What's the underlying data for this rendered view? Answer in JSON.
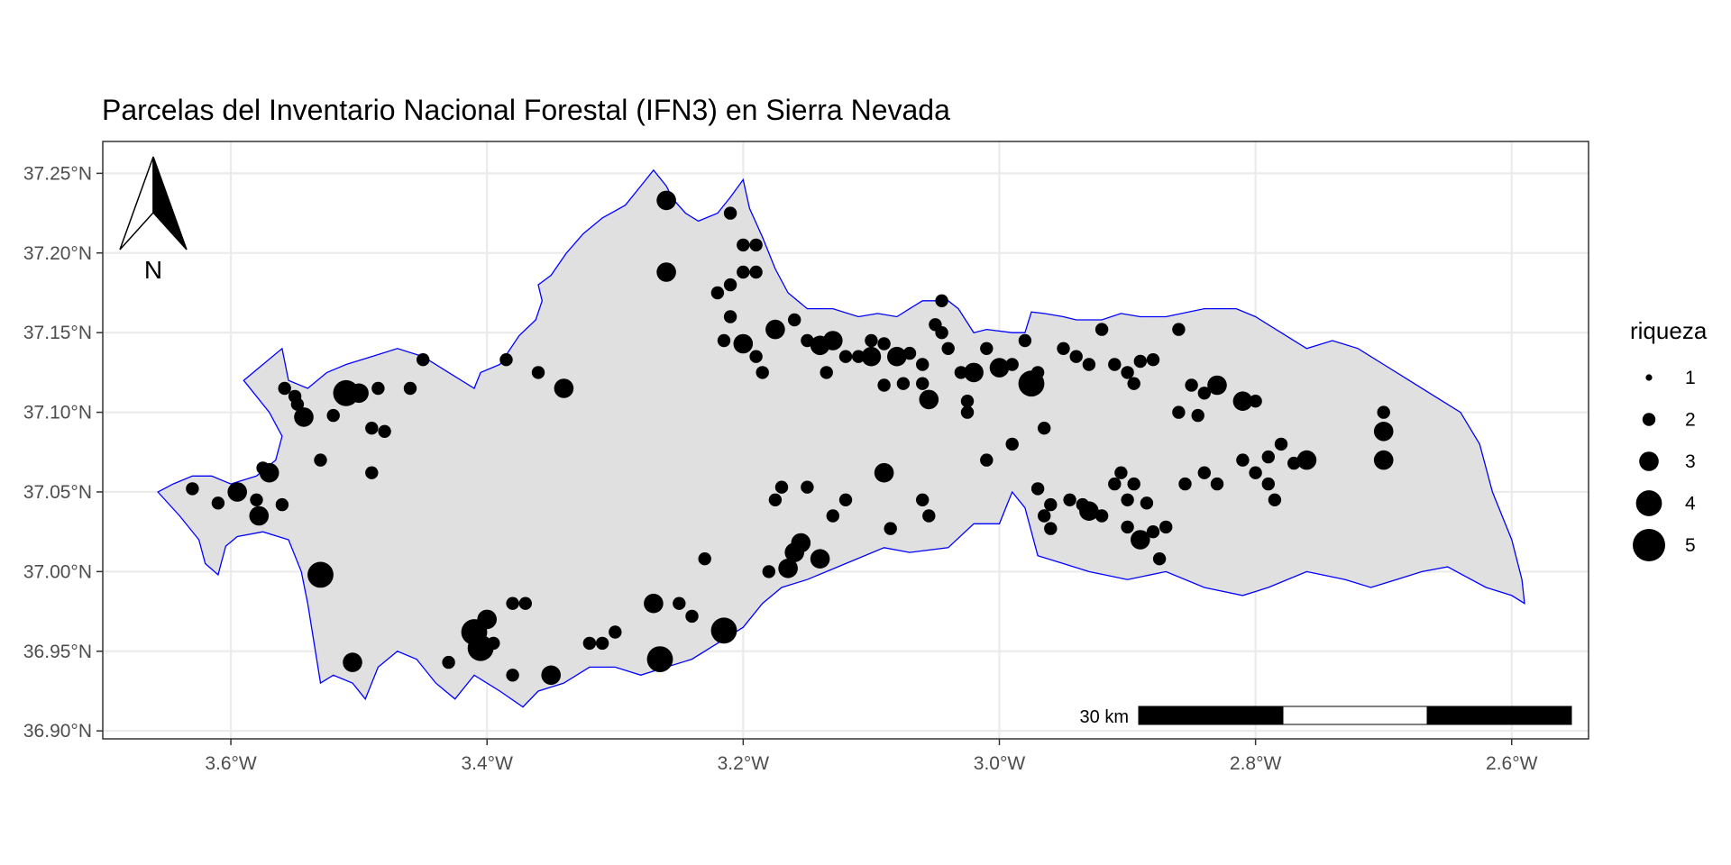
{
  "title": "Parcelas del Inventario Nacional Forestal (IFN3) en Sierra Nevada",
  "colors": {
    "panel_border": "#333333",
    "grid": "#ebebeb",
    "region_fill": "#e0e0e0",
    "region_stroke": "#0000ff",
    "points": "#000000",
    "tick_text": "#4d4d4d"
  },
  "x_ticks": [
    {
      "value": -3.6,
      "label": "3.6°W"
    },
    {
      "value": -3.4,
      "label": "3.4°W"
    },
    {
      "value": -3.2,
      "label": "3.2°W"
    },
    {
      "value": -3.0,
      "label": "3.0°W"
    },
    {
      "value": -2.8,
      "label": "2.8°W"
    },
    {
      "value": -2.6,
      "label": "2.6°W"
    }
  ],
  "y_ticks": [
    {
      "value": 37.25,
      "label": "37.25°N"
    },
    {
      "value": 37.2,
      "label": "37.20°N"
    },
    {
      "value": 37.15,
      "label": "37.15°N"
    },
    {
      "value": 37.1,
      "label": "37.10°N"
    },
    {
      "value": 37.05,
      "label": "37.05°N"
    },
    {
      "value": 37.0,
      "label": "37.00°N"
    },
    {
      "value": 36.95,
      "label": "36.95°N"
    },
    {
      "value": 36.9,
      "label": "36.90°N"
    }
  ],
  "xlim": [
    -3.7,
    -2.54
  ],
  "ylim": [
    36.895,
    37.27
  ],
  "legend": {
    "title": "riqueza",
    "entries": [
      {
        "label": "1",
        "value": 1
      },
      {
        "label": "2",
        "value": 2
      },
      {
        "label": "3",
        "value": 3
      },
      {
        "label": "4",
        "value": 4
      },
      {
        "label": "5",
        "value": 5
      }
    ]
  },
  "north_arrow": {
    "label": "N"
  },
  "scale_bar": {
    "label": "30 km",
    "segments": 3
  },
  "region_outline": [
    [
      -3.657,
      37.05
    ],
    [
      -3.64,
      37.035
    ],
    [
      -3.625,
      37.02
    ],
    [
      -3.62,
      37.005
    ],
    [
      -3.61,
      36.998
    ],
    [
      -3.604,
      37.016
    ],
    [
      -3.595,
      37.022
    ],
    [
      -3.575,
      37.025
    ],
    [
      -3.555,
      37.02
    ],
    [
      -3.545,
      37.0
    ],
    [
      -3.54,
      36.98
    ],
    [
      -3.535,
      36.955
    ],
    [
      -3.53,
      36.93
    ],
    [
      -3.52,
      36.935
    ],
    [
      -3.505,
      36.93
    ],
    [
      -3.495,
      36.92
    ],
    [
      -3.485,
      36.94
    ],
    [
      -3.47,
      36.95
    ],
    [
      -3.455,
      36.945
    ],
    [
      -3.44,
      36.93
    ],
    [
      -3.425,
      36.92
    ],
    [
      -3.41,
      36.935
    ],
    [
      -3.39,
      36.925
    ],
    [
      -3.372,
      36.915
    ],
    [
      -3.36,
      36.925
    ],
    [
      -3.34,
      36.93
    ],
    [
      -3.32,
      36.94
    ],
    [
      -3.3,
      36.94
    ],
    [
      -3.28,
      36.935
    ],
    [
      -3.26,
      36.94
    ],
    [
      -3.24,
      36.945
    ],
    [
      -3.22,
      36.955
    ],
    [
      -3.2,
      36.965
    ],
    [
      -3.185,
      36.98
    ],
    [
      -3.17,
      36.99
    ],
    [
      -3.15,
      36.995
    ],
    [
      -3.12,
      37.005
    ],
    [
      -3.09,
      37.015
    ],
    [
      -3.07,
      37.012
    ],
    [
      -3.04,
      37.015
    ],
    [
      -3.02,
      37.03
    ],
    [
      -3.0,
      37.03
    ],
    [
      -2.99,
      37.05
    ],
    [
      -2.98,
      37.04
    ],
    [
      -2.97,
      37.01
    ],
    [
      -2.95,
      37.005
    ],
    [
      -2.93,
      37.0
    ],
    [
      -2.9,
      36.995
    ],
    [
      -2.87,
      37.0
    ],
    [
      -2.84,
      36.99
    ],
    [
      -2.81,
      36.985
    ],
    [
      -2.79,
      36.99
    ],
    [
      -2.76,
      37.0
    ],
    [
      -2.73,
      36.995
    ],
    [
      -2.71,
      36.99
    ],
    [
      -2.69,
      36.995
    ],
    [
      -2.67,
      37.0
    ],
    [
      -2.65,
      37.003
    ],
    [
      -2.62,
      36.99
    ],
    [
      -2.6,
      36.985
    ],
    [
      -2.59,
      36.98
    ],
    [
      -2.592,
      36.995
    ],
    [
      -2.6,
      37.02
    ],
    [
      -2.615,
      37.05
    ],
    [
      -2.625,
      37.08
    ],
    [
      -2.64,
      37.1
    ],
    [
      -2.66,
      37.11
    ],
    [
      -2.68,
      37.12
    ],
    [
      -2.7,
      37.13
    ],
    [
      -2.72,
      37.14
    ],
    [
      -2.74,
      37.145
    ],
    [
      -2.76,
      37.14
    ],
    [
      -2.78,
      37.15
    ],
    [
      -2.8,
      37.16
    ],
    [
      -2.815,
      37.165
    ],
    [
      -2.84,
      37.165
    ],
    [
      -2.87,
      37.16
    ],
    [
      -2.89,
      37.16
    ],
    [
      -2.905,
      37.162
    ],
    [
      -2.92,
      37.158
    ],
    [
      -2.94,
      37.158
    ],
    [
      -2.95,
      37.16
    ],
    [
      -2.965,
      37.162
    ],
    [
      -2.975,
      37.163
    ],
    [
      -2.98,
      37.15
    ],
    [
      -2.99,
      37.15
    ],
    [
      -3.01,
      37.152
    ],
    [
      -3.02,
      37.15
    ],
    [
      -3.032,
      37.165
    ],
    [
      -3.04,
      37.17
    ],
    [
      -3.06,
      37.17
    ],
    [
      -3.07,
      37.165
    ],
    [
      -3.08,
      37.16
    ],
    [
      -3.095,
      37.162
    ],
    [
      -3.11,
      37.16
    ],
    [
      -3.13,
      37.165
    ],
    [
      -3.15,
      37.165
    ],
    [
      -3.165,
      37.175
    ],
    [
      -3.175,
      37.19
    ],
    [
      -3.185,
      37.21
    ],
    [
      -3.195,
      37.228
    ],
    [
      -3.2,
      37.246
    ],
    [
      -3.21,
      37.235
    ],
    [
      -3.22,
      37.225
    ],
    [
      -3.235,
      37.22
    ],
    [
      -3.245,
      37.225
    ],
    [
      -3.255,
      37.234
    ],
    [
      -3.26,
      37.242
    ],
    [
      -3.27,
      37.252
    ],
    [
      -3.28,
      37.242
    ],
    [
      -3.292,
      37.23
    ],
    [
      -3.31,
      37.222
    ],
    [
      -3.325,
      37.212
    ],
    [
      -3.338,
      37.2
    ],
    [
      -3.35,
      37.186
    ],
    [
      -3.36,
      37.18
    ],
    [
      -3.357,
      37.17
    ],
    [
      -3.362,
      37.158
    ],
    [
      -3.375,
      37.148
    ],
    [
      -3.39,
      37.13
    ],
    [
      -3.405,
      37.125
    ],
    [
      -3.41,
      37.115
    ],
    [
      -3.43,
      37.125
    ],
    [
      -3.45,
      37.135
    ],
    [
      -3.47,
      37.14
    ],
    [
      -3.49,
      37.135
    ],
    [
      -3.51,
      37.13
    ],
    [
      -3.525,
      37.125
    ],
    [
      -3.54,
      37.115
    ],
    [
      -3.555,
      37.12
    ],
    [
      -3.56,
      37.14
    ],
    [
      -3.575,
      37.13
    ],
    [
      -3.59,
      37.12
    ],
    [
      -3.57,
      37.1
    ],
    [
      -3.56,
      37.085
    ],
    [
      -3.565,
      37.07
    ],
    [
      -3.58,
      37.06
    ],
    [
      -3.6,
      37.055
    ],
    [
      -3.615,
      37.06
    ],
    [
      -3.63,
      37.06
    ],
    [
      -3.645,
      37.055
    ]
  ],
  "points": [
    [
      -3.63,
      37.052,
      2
    ],
    [
      -3.61,
      37.043,
      2
    ],
    [
      -3.595,
      37.05,
      3
    ],
    [
      -3.578,
      37.035,
      3
    ],
    [
      -3.58,
      37.045,
      2
    ],
    [
      -3.57,
      37.062,
      3
    ],
    [
      -3.56,
      37.042,
      2
    ],
    [
      -3.558,
      37.115,
      2
    ],
    [
      -3.548,
      37.105,
      2
    ],
    [
      -3.543,
      37.097,
      3
    ],
    [
      -3.55,
      37.11,
      2
    ],
    [
      -3.575,
      37.065,
      2
    ],
    [
      -3.53,
      37.07,
      2
    ],
    [
      -3.52,
      37.098,
      2
    ],
    [
      -3.51,
      37.112,
      4
    ],
    [
      -3.5,
      37.112,
      3
    ],
    [
      -3.49,
      37.09,
      2
    ],
    [
      -3.48,
      37.088,
      2
    ],
    [
      -3.485,
      37.115,
      2
    ],
    [
      -3.46,
      37.115,
      2
    ],
    [
      -3.45,
      37.133,
      2
    ],
    [
      -3.53,
      36.998,
      4
    ],
    [
      -3.505,
      36.943,
      3
    ],
    [
      -3.49,
      37.062,
      2
    ],
    [
      -3.385,
      37.133,
      2
    ],
    [
      -3.36,
      37.125,
      2
    ],
    [
      -3.34,
      37.115,
      3
    ],
    [
      -3.41,
      36.962,
      4
    ],
    [
      -3.4,
      36.97,
      3
    ],
    [
      -3.405,
      36.952,
      4
    ],
    [
      -3.395,
      36.955,
      2
    ],
    [
      -3.38,
      36.935,
      2
    ],
    [
      -3.43,
      36.943,
      2
    ],
    [
      -3.38,
      36.98,
      2
    ],
    [
      -3.37,
      36.98,
      2
    ],
    [
      -3.35,
      36.935,
      3
    ],
    [
      -3.32,
      36.955,
      2
    ],
    [
      -3.31,
      36.955,
      2
    ],
    [
      -3.3,
      36.962,
      2
    ],
    [
      -3.27,
      36.98,
      3
    ],
    [
      -3.265,
      36.945,
      4
    ],
    [
      -3.25,
      36.98,
      2
    ],
    [
      -3.24,
      36.972,
      2
    ],
    [
      -3.215,
      36.963,
      4
    ],
    [
      -3.23,
      37.008,
      2
    ],
    [
      -3.26,
      37.233,
      3
    ],
    [
      -3.26,
      37.188,
      3
    ],
    [
      -3.21,
      37.225,
      2
    ],
    [
      -3.2,
      37.205,
      2
    ],
    [
      -3.19,
      37.205,
      2
    ],
    [
      -3.2,
      37.188,
      2
    ],
    [
      -3.19,
      37.188,
      2
    ],
    [
      -3.21,
      37.18,
      2
    ],
    [
      -3.21,
      37.16,
      2
    ],
    [
      -3.22,
      37.175,
      2
    ],
    [
      -3.2,
      37.143,
      3
    ],
    [
      -3.215,
      37.145,
      2
    ],
    [
      -3.19,
      37.135,
      2
    ],
    [
      -3.185,
      37.125,
      2
    ],
    [
      -3.175,
      37.152,
      3
    ],
    [
      -3.16,
      37.158,
      2
    ],
    [
      -3.15,
      37.145,
      2
    ],
    [
      -3.14,
      37.142,
      3
    ],
    [
      -3.13,
      37.145,
      3
    ],
    [
      -3.135,
      37.125,
      2
    ],
    [
      -3.12,
      37.135,
      2
    ],
    [
      -3.11,
      37.135,
      2
    ],
    [
      -3.1,
      37.145,
      2
    ],
    [
      -3.1,
      37.135,
      3
    ],
    [
      -3.09,
      37.143,
      2
    ],
    [
      -3.08,
      37.135,
      3
    ],
    [
      -3.07,
      37.137,
      2
    ],
    [
      -3.06,
      37.13,
      2
    ],
    [
      -3.045,
      37.15,
      2
    ],
    [
      -3.045,
      37.17,
      2
    ],
    [
      -3.05,
      37.155,
      2
    ],
    [
      -3.04,
      37.14,
      2
    ],
    [
      -3.075,
      37.118,
      2
    ],
    [
      -3.09,
      37.117,
      2
    ],
    [
      -3.06,
      37.118,
      2
    ],
    [
      -3.055,
      37.108,
      3
    ],
    [
      -3.03,
      37.125,
      2
    ],
    [
      -3.025,
      37.107,
      2
    ],
    [
      -3.025,
      37.1,
      2
    ],
    [
      -3.02,
      37.125,
      3
    ],
    [
      -3.01,
      37.14,
      2
    ],
    [
      -3.0,
      37.128,
      3
    ],
    [
      -2.99,
      37.13,
      2
    ],
    [
      -2.98,
      37.145,
      2
    ],
    [
      -2.97,
      37.125,
      2
    ],
    [
      -2.975,
      37.118,
      4
    ],
    [
      -2.95,
      37.14,
      2
    ],
    [
      -2.94,
      37.135,
      2
    ],
    [
      -2.93,
      37.13,
      2
    ],
    [
      -2.92,
      37.152,
      2
    ],
    [
      -2.91,
      37.13,
      2
    ],
    [
      -2.9,
      37.125,
      2
    ],
    [
      -2.895,
      37.118,
      2
    ],
    [
      -2.89,
      37.132,
      2
    ],
    [
      -2.88,
      37.133,
      2
    ],
    [
      -2.86,
      37.152,
      2
    ],
    [
      -2.85,
      37.117,
      2
    ],
    [
      -2.84,
      37.112,
      2
    ],
    [
      -2.83,
      37.117,
      3
    ],
    [
      -2.81,
      37.107,
      3
    ],
    [
      -2.8,
      37.107,
      2
    ],
    [
      -2.86,
      37.1,
      2
    ],
    [
      -2.845,
      37.098,
      2
    ],
    [
      -2.99,
      37.08,
      2
    ],
    [
      -2.965,
      37.09,
      2
    ],
    [
      -2.97,
      37.052,
      2
    ],
    [
      -2.96,
      37.042,
      2
    ],
    [
      -2.965,
      37.035,
      2
    ],
    [
      -2.945,
      37.045,
      2
    ],
    [
      -2.935,
      37.042,
      2
    ],
    [
      -2.93,
      37.038,
      3
    ],
    [
      -2.92,
      37.035,
      2
    ],
    [
      -2.91,
      37.055,
      2
    ],
    [
      -2.905,
      37.062,
      2
    ],
    [
      -2.895,
      37.055,
      2
    ],
    [
      -2.9,
      37.045,
      2
    ],
    [
      -2.9,
      37.028,
      2
    ],
    [
      -2.89,
      37.02,
      3
    ],
    [
      -2.88,
      37.025,
      2
    ],
    [
      -2.87,
      37.028,
      2
    ],
    [
      -2.885,
      37.043,
      2
    ],
    [
      -2.875,
      37.008,
      2
    ],
    [
      -2.96,
      37.027,
      2
    ],
    [
      -3.01,
      37.07,
      2
    ],
    [
      -3.09,
      37.062,
      3
    ],
    [
      -3.085,
      37.027,
      2
    ],
    [
      -3.06,
      37.045,
      2
    ],
    [
      -3.055,
      37.035,
      2
    ],
    [
      -3.12,
      37.045,
      2
    ],
    [
      -3.13,
      37.035,
      2
    ],
    [
      -3.15,
      37.053,
      2
    ],
    [
      -3.17,
      37.053,
      2
    ],
    [
      -3.175,
      37.045,
      2
    ],
    [
      -3.18,
      37.0,
      2
    ],
    [
      -3.165,
      37.002,
      3
    ],
    [
      -3.16,
      37.012,
      3
    ],
    [
      -3.155,
      37.018,
      3
    ],
    [
      -3.14,
      37.008,
      3
    ],
    [
      -2.855,
      37.055,
      2
    ],
    [
      -2.84,
      37.062,
      2
    ],
    [
      -2.83,
      37.055,
      2
    ],
    [
      -2.81,
      37.07,
      2
    ],
    [
      -2.8,
      37.062,
      2
    ],
    [
      -2.79,
      37.072,
      2
    ],
    [
      -2.78,
      37.08,
      2
    ],
    [
      -2.77,
      37.068,
      2
    ],
    [
      -2.76,
      37.07,
      3
    ],
    [
      -2.79,
      37.055,
      2
    ],
    [
      -2.785,
      37.045,
      2
    ],
    [
      -2.7,
      37.088,
      3
    ],
    [
      -2.7,
      37.07,
      3
    ],
    [
      -2.7,
      37.1,
      2
    ]
  ]
}
